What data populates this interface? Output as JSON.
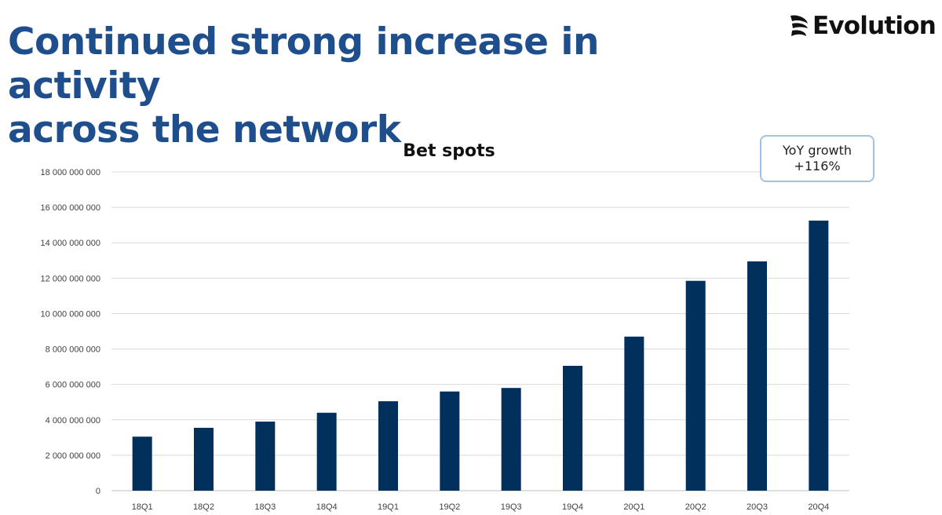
{
  "slide": {
    "title_line1": "Continued strong increase in activity",
    "title_line2": "across the network",
    "logo_text": "Evolution",
    "logo_icon": "evolution-swirl-icon"
  },
  "callout": {
    "line1": "YoY growth",
    "line2": "+116%"
  },
  "colors": {
    "title": "#1f4e8c",
    "bar": "#00305b",
    "grid": "#d9d9d9",
    "callout_border": "#9dc3e6"
  },
  "chart_data": {
    "type": "bar",
    "title": "Bet spots",
    "xlabel": "",
    "ylabel": "",
    "categories": [
      "18Q1",
      "18Q2",
      "18Q3",
      "18Q4",
      "19Q1",
      "19Q2",
      "19Q3",
      "19Q4",
      "20Q1",
      "20Q2",
      "20Q3",
      "20Q4"
    ],
    "values": [
      3050000000,
      3550000000,
      3900000000,
      4400000000,
      5050000000,
      5600000000,
      5800000000,
      7050000000,
      8700000000,
      11850000000,
      12950000000,
      15250000000
    ],
    "ylim": [
      0,
      18000000000
    ],
    "yticks": [
      0,
      2000000000,
      4000000000,
      6000000000,
      8000000000,
      10000000000,
      12000000000,
      14000000000,
      16000000000,
      18000000000
    ],
    "ytick_labels": [
      "0",
      "2 000 000 000",
      "4 000 000 000",
      "6 000 000 000",
      "8 000 000 000",
      "10 000 000 000",
      "12 000 000 000",
      "14 000 000 000",
      "16 000 000 000",
      "18 000 000 000"
    ],
    "grid": true,
    "legend": "none"
  }
}
